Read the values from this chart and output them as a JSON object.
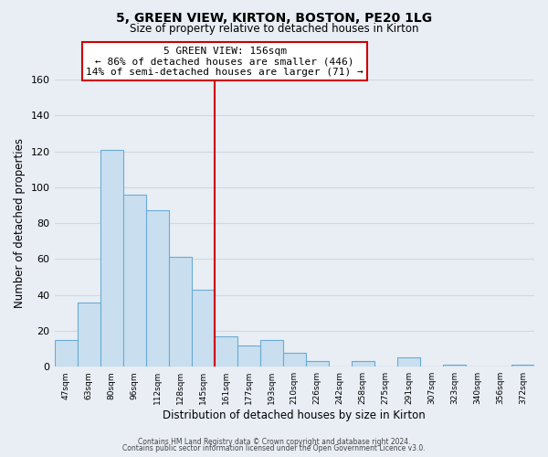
{
  "title": "5, GREEN VIEW, KIRTON, BOSTON, PE20 1LG",
  "subtitle": "Size of property relative to detached houses in Kirton",
  "xlabel": "Distribution of detached houses by size in Kirton",
  "ylabel": "Number of detached properties",
  "bar_labels": [
    "47sqm",
    "63sqm",
    "80sqm",
    "96sqm",
    "112sqm",
    "128sqm",
    "145sqm",
    "161sqm",
    "177sqm",
    "193sqm",
    "210sqm",
    "226sqm",
    "242sqm",
    "258sqm",
    "275sqm",
    "291sqm",
    "307sqm",
    "323sqm",
    "340sqm",
    "356sqm",
    "372sqm"
  ],
  "bar_values": [
    15,
    36,
    121,
    96,
    87,
    61,
    43,
    17,
    12,
    15,
    8,
    3,
    0,
    3,
    0,
    5,
    0,
    1,
    0,
    0,
    1
  ],
  "bar_color": "#c9dff0",
  "bar_edge_color": "#6aaad4",
  "highlight_line_color": "#cc0000",
  "annotation_title": "5 GREEN VIEW: 156sqm",
  "annotation_line1": "← 86% of detached houses are smaller (446)",
  "annotation_line2": "14% of semi-detached houses are larger (71) →",
  "annotation_box_color": "#ffffff",
  "annotation_box_edge_color": "#cc0000",
  "ylim": [
    0,
    160
  ],
  "yticks": [
    0,
    20,
    40,
    60,
    80,
    100,
    120,
    140,
    160
  ],
  "footer1": "Contains HM Land Registry data © Crown copyright and database right 2024.",
  "footer2": "Contains public sector information licensed under the Open Government Licence v3.0.",
  "grid_color": "#d0d8e0",
  "background_color": "#e8eef4"
}
